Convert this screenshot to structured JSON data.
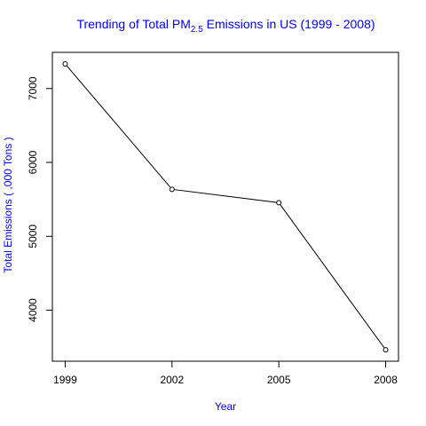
{
  "chart_data": {
    "type": "line",
    "title": {
      "prefix": "Trending of Total PM",
      "subscript": "2.5",
      "suffix": " Emissions in US (1999 - 2008)"
    },
    "xlabel": "Year",
    "ylabel": "Total Emissions ( ,000 Tons )",
    "x": [
      1999,
      2002,
      2005,
      2008
    ],
    "x_tick_labels": [
      "1999",
      "2002",
      "2005",
      "2008"
    ],
    "series": [
      {
        "values": [
          7332.97,
          5635.78,
          5454.7,
          3464.21
        ]
      }
    ],
    "y_ticks": [
      4000,
      5000,
      6000,
      7000
    ],
    "y_tick_labels": [
      "4000",
      "5000",
      "6000",
      "7000"
    ],
    "xlim": [
      1998.64,
      2008.36
    ],
    "ylim": [
      3309.5,
      7489.5
    ],
    "marker": "open-circle",
    "grid": false,
    "legend": "none",
    "colors": {
      "title": "#0000FF",
      "axis_titles": "#0000FF",
      "line": "#000000",
      "axes": "#000000"
    }
  }
}
